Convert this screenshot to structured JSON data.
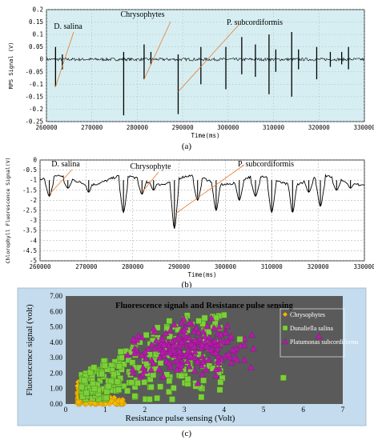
{
  "panel_labels": [
    "(a)",
    "(b)",
    "(c)"
  ],
  "chart_data": [
    {
      "type": "line",
      "xlabel": "Time(ms)",
      "ylabel": "RPS Signal (V)",
      "xlim": [
        260000,
        330000
      ],
      "ylim": [
        -0.25,
        0.2
      ],
      "x_ticks": [
        260000,
        270000,
        280000,
        290000,
        300000,
        310000,
        320000,
        330000
      ],
      "y_ticks": [
        -0.25,
        -0.2,
        -0.15,
        -0.1,
        -0.05,
        0,
        0.05,
        0.1,
        0.15,
        0.2
      ],
      "x_tick_labels": [
        "260000",
        "270000",
        "280000",
        "290000",
        "300000",
        "310000",
        "320000",
        "330000"
      ],
      "y_tick_labels": [
        "-0.25",
        "-0.2",
        "-0.15",
        "-0.1",
        "-0.05",
        "0",
        "0.05",
        "0.1",
        "0.15",
        "0.2"
      ],
      "grid": true,
      "background": "#d6eef2",
      "baseline": 0,
      "spikes": [
        {
          "x": 262000,
          "up": 0.05,
          "down": -0.11
        },
        {
          "x": 263500,
          "up": 0.02,
          "down": -0.04
        },
        {
          "x": 277000,
          "up": 0.03,
          "down": -0.225
        },
        {
          "x": 281500,
          "up": 0.06,
          "down": -0.08
        },
        {
          "x": 283000,
          "up": 0.03,
          "down": -0.02
        },
        {
          "x": 289000,
          "up": 0.02,
          "down": -0.22
        },
        {
          "x": 294000,
          "up": 0.05,
          "down": -0.1
        },
        {
          "x": 299500,
          "up": 0.05,
          "down": -0.12
        },
        {
          "x": 303000,
          "up": 0.09,
          "down": -0.06
        },
        {
          "x": 306000,
          "up": 0.06,
          "down": -0.07
        },
        {
          "x": 309000,
          "up": 0.1,
          "down": -0.14
        },
        {
          "x": 310500,
          "up": 0.04,
          "down": -0.05
        },
        {
          "x": 314000,
          "up": 0.11,
          "down": -0.15
        },
        {
          "x": 315500,
          "up": 0.04,
          "down": -0.04
        },
        {
          "x": 319500,
          "up": 0.05,
          "down": -0.08
        },
        {
          "x": 322500,
          "up": 0.03,
          "down": -0.03
        },
        {
          "x": 325000,
          "up": 0.03,
          "down": -0.02
        },
        {
          "x": 326500,
          "up": 0.05,
          "down": -0.04
        }
      ],
      "annotations": [
        {
          "text": "D. salina",
          "target_x": 262000,
          "target_y": -0.11
        },
        {
          "text": "Chrysophytes",
          "target_x": 281500,
          "target_y": -0.08
        },
        {
          "text": "P. subcordiformis",
          "target_x": 289000,
          "target_y": -0.13
        }
      ]
    },
    {
      "type": "line",
      "xlabel": "Time(ms)",
      "ylabel": "Chlorophyll Fluorescence Signal(V)",
      "xlim": [
        260000,
        330000
      ],
      "ylim": [
        -5,
        0
      ],
      "x_ticks": [
        260000,
        270000,
        280000,
        290000,
        300000,
        310000,
        320000,
        330000
      ],
      "y_ticks": [
        -5,
        -4.5,
        -4,
        -3.5,
        -3,
        -2.5,
        -2,
        -1.5,
        -1,
        -0.5,
        0
      ],
      "x_tick_labels": [
        "260000",
        "270000",
        "280000",
        "290000",
        "300000",
        "310000",
        "320000",
        "330000"
      ],
      "y_tick_labels": [
        "-5",
        "-4.5",
        "-4",
        "-3.5",
        "-3",
        "-2.5",
        "-2",
        "-1.5",
        "-1",
        "-0.5",
        "0"
      ],
      "grid": true,
      "background": "#ffffff",
      "baseline": -1.0,
      "dips": [
        {
          "x": 262000,
          "depth": -1.8
        },
        {
          "x": 266000,
          "depth": -1.4
        },
        {
          "x": 270500,
          "depth": -1.6
        },
        {
          "x": 278000,
          "depth": -2.6
        },
        {
          "x": 282000,
          "depth": -1.7
        },
        {
          "x": 284500,
          "depth": -1.5
        },
        {
          "x": 289000,
          "depth": -3.4
        },
        {
          "x": 294000,
          "depth": -2.0
        },
        {
          "x": 298000,
          "depth": -2.5
        },
        {
          "x": 303000,
          "depth": -2.0
        },
        {
          "x": 306500,
          "depth": -1.8
        },
        {
          "x": 310000,
          "depth": -2.6
        },
        {
          "x": 314500,
          "depth": -2.6
        },
        {
          "x": 318000,
          "depth": -1.6
        },
        {
          "x": 320500,
          "depth": -2.3
        },
        {
          "x": 324000,
          "depth": -1.5
        },
        {
          "x": 327000,
          "depth": -1.4
        }
      ],
      "annotations": [
        {
          "text": "D. salina",
          "target_x": 262000,
          "target_y": -1.7
        },
        {
          "text": "Chrysophyte",
          "target_x": 282000,
          "target_y": -1.6
        },
        {
          "text": "P. subcordiformis",
          "target_x": 289000,
          "target_y": -2.7
        }
      ]
    },
    {
      "type": "scatter",
      "title": "Fluorescence signals  and Resistance pulse sensing",
      "xlabel": "Resistance pulse sensing (Volt)",
      "ylabel": "Fluorescence signal (volt)",
      "xlim": [
        0,
        7
      ],
      "ylim": [
        0,
        7
      ],
      "x_ticks": [
        0,
        1,
        2,
        3,
        4,
        5,
        6,
        7
      ],
      "y_ticks": [
        0,
        1,
        2,
        3,
        4,
        5,
        6,
        7
      ],
      "x_tick_labels": [
        "0",
        "1",
        "2",
        "3",
        "4",
        "5",
        "6",
        "7"
      ],
      "y_tick_labels": [
        "0.00",
        "1.00",
        "2.00",
        "3.00",
        "4.00",
        "5.00",
        "6.00",
        "7.00"
      ],
      "legend_position": "top-right",
      "plot_background": "#5a5a5a",
      "outer_background": "#c4dced",
      "series": [
        {
          "name": "Chrysophytes",
          "marker": "diamond",
          "color": "#f5b800",
          "x_range": [
            0.3,
            1.5
          ],
          "y_range": [
            0.0,
            1.6
          ],
          "count": 140
        },
        {
          "name": "Dunaliella salina",
          "marker": "square",
          "color": "#7ccf3a",
          "x_range": [
            0.4,
            4.0
          ],
          "y_range": [
            0.3,
            5.5
          ],
          "count": 260
        },
        {
          "name": "Platumonas subcordiforms",
          "marker": "triangle",
          "color": "#b21ca8",
          "x_range": [
            1.4,
            4.8
          ],
          "y_range": [
            1.0,
            6.0
          ],
          "count": 200
        }
      ],
      "outliers": [
        {
          "series": 1,
          "x": 5.5,
          "y": 1.7
        },
        {
          "series": 1,
          "x": 4.4,
          "y": 4.2
        },
        {
          "series": 2,
          "x": 6.4,
          "y": 4.4
        },
        {
          "series": 2,
          "x": 4.7,
          "y": 4.5
        }
      ]
    }
  ]
}
